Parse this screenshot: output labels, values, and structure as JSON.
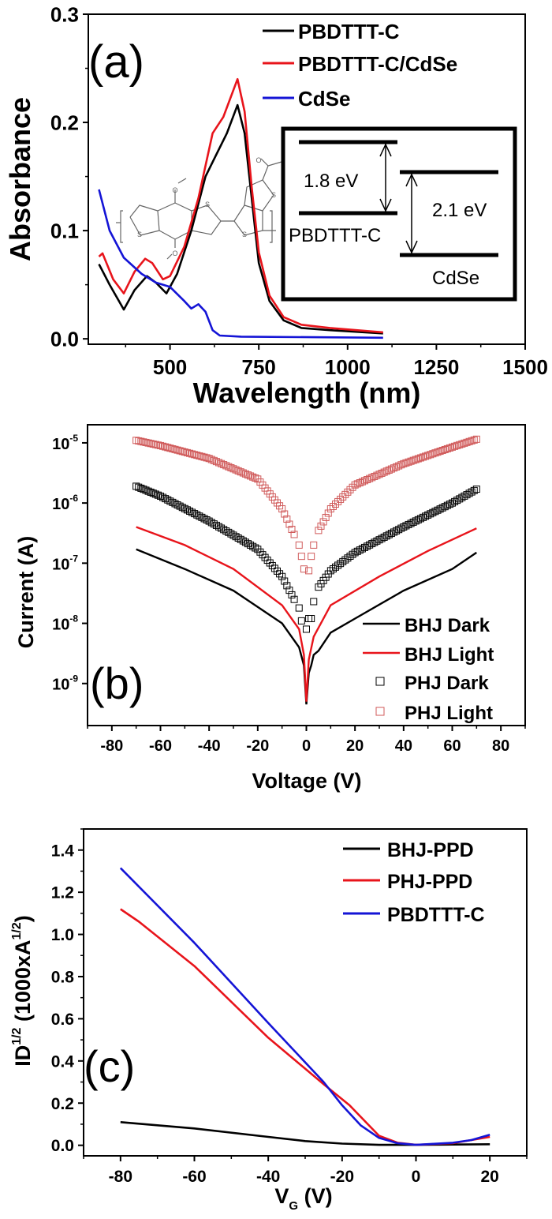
{
  "colors": {
    "black": "#000000",
    "red": "#e8141b",
    "blue": "#1414d6",
    "light_red": "#d05a5a",
    "molecule": "#666666"
  },
  "chart_data": [
    {
      "panel_label": "(a)",
      "type": "line",
      "xlabel": "Wavelength (nm)",
      "ylabel": "Absorbance",
      "xlim": [
        270,
        1500
      ],
      "ylim": [
        -0.005,
        0.3
      ],
      "xticks": [
        500,
        750,
        1000,
        1250,
        1500
      ],
      "xtick_labels": [
        "500",
        "750",
        "1000",
        "1250",
        "1500"
      ],
      "yticks": [
        0.0,
        0.1,
        0.2,
        0.3
      ],
      "ytick_labels": [
        "0.0",
        "0.1",
        "0.2",
        "0.3"
      ],
      "grid": false,
      "legend_position": "top-right",
      "series": [
        {
          "name": "PBDTTT-C",
          "color": "#000000",
          "x": [
            300,
            330,
            370,
            400,
            435,
            460,
            490,
            520,
            560,
            600,
            630,
            660,
            690,
            710,
            730,
            750,
            780,
            820,
            870,
            950,
            1100
          ],
          "y": [
            0.069,
            0.05,
            0.027,
            0.045,
            0.058,
            0.052,
            0.042,
            0.06,
            0.1,
            0.15,
            0.17,
            0.19,
            0.216,
            0.19,
            0.13,
            0.07,
            0.035,
            0.017,
            0.01,
            0.008,
            0.005
          ]
        },
        {
          "name": "PBDTTT-C/CdSe",
          "color": "#e8141b",
          "x": [
            300,
            310,
            340,
            370,
            400,
            430,
            450,
            480,
            500,
            540,
            580,
            620,
            650,
            690,
            710,
            730,
            750,
            780,
            820,
            870,
            950,
            1100
          ],
          "y": [
            0.076,
            0.079,
            0.055,
            0.042,
            0.062,
            0.074,
            0.07,
            0.055,
            0.058,
            0.085,
            0.13,
            0.19,
            0.205,
            0.24,
            0.21,
            0.14,
            0.08,
            0.04,
            0.02,
            0.013,
            0.01,
            0.006
          ]
        },
        {
          "name": "CdSe",
          "color": "#1414d6",
          "x": [
            300,
            330,
            370,
            420,
            460,
            500,
            540,
            560,
            580,
            600,
            620,
            640,
            700,
            1100
          ],
          "y": [
            0.138,
            0.1,
            0.075,
            0.06,
            0.052,
            0.048,
            0.035,
            0.028,
            0.032,
            0.025,
            0.008,
            0.003,
            0.002,
            0.001
          ]
        }
      ],
      "inset": {
        "labels": {
          "gap1": "1.8 eV",
          "gap2": "2.1 eV",
          "material1": "PBDTTT-C",
          "material2": "CdSe"
        }
      },
      "molecule_atoms": [
        "S",
        "S",
        "S",
        "S",
        "O",
        "O",
        "O"
      ]
    },
    {
      "panel_label": "(b)",
      "type": "scatter",
      "xlabel": "Voltage (V)",
      "ylabel": "Current (A)",
      "yscale": "log",
      "xlim": [
        -90,
        90
      ],
      "ylim": [
        2e-10,
        2e-05
      ],
      "xticks": [
        -80,
        -60,
        -40,
        -20,
        0,
        20,
        40,
        60,
        80
      ],
      "xtick_labels": [
        "-80",
        "-60",
        "-40",
        "-20",
        "0",
        "20",
        "40",
        "60",
        "80"
      ],
      "yticks": [
        1e-09,
        1e-08,
        1e-07,
        1e-06,
        1e-05
      ],
      "ytick_labels": [
        {
          "base": "10",
          "exp": "-9"
        },
        {
          "base": "10",
          "exp": "-8"
        },
        {
          "base": "10",
          "exp": "-7"
        },
        {
          "base": "10",
          "exp": "-6"
        },
        {
          "base": "10",
          "exp": "-5"
        }
      ],
      "grid": false,
      "legend_position": "bottom-right",
      "series": [
        {
          "name": "BHJ Dark",
          "style": "line",
          "color": "#000000",
          "x": [
            -70,
            -50,
            -30,
            -10,
            -3,
            -1,
            0,
            1,
            2,
            3,
            5,
            10,
            20,
            40,
            60,
            70
          ],
          "y": [
            1.7e-07,
            8e-08,
            3.5e-08,
            1e-08,
            4e-09,
            2e-09,
            4.5e-10,
            1.5e-09,
            2e-09,
            3e-09,
            3.5e-09,
            7e-09,
            1.2e-08,
            3.5e-08,
            8e-08,
            1.5e-07
          ]
        },
        {
          "name": "BHJ Light",
          "style": "line",
          "color": "#e8141b",
          "x": [
            -70,
            -50,
            -30,
            -10,
            -3,
            -1,
            0,
            1,
            3,
            10,
            30,
            50,
            70
          ],
          "y": [
            4e-07,
            2e-07,
            8e-08,
            2e-08,
            8e-09,
            3e-09,
            5e-10,
            2.5e-09,
            6e-09,
            2e-08,
            6e-08,
            1.6e-07,
            3.8e-07
          ]
        },
        {
          "name": "PHJ Dark",
          "style": "square",
          "color": "#000000",
          "x": [
            -70,
            -60,
            -40,
            -20,
            -10,
            -5,
            -3,
            -2,
            0,
            1,
            2,
            3,
            5,
            10,
            20,
            40,
            60,
            70
          ],
          "y": [
            1.9e-06,
            1.3e-06,
            5e-07,
            1.7e-07,
            6e-08,
            2.5e-08,
            1.8e-08,
            1.1e-08,
            8e-09,
            1.2e-08,
            1.2e-08,
            2.3e-08,
            4e-08,
            7.5e-08,
            1.5e-07,
            4e-07,
            1e-06,
            1.7e-06
          ]
        },
        {
          "name": "PHJ Light",
          "style": "square",
          "color": "#d05a5a",
          "x": [
            -70,
            -60,
            -40,
            -20,
            -10,
            -5,
            -3,
            -2,
            -1,
            1,
            2,
            3,
            5,
            10,
            20,
            40,
            60,
            70
          ],
          "y": [
            1.1e-05,
            9e-06,
            5.5e-06,
            2.5e-06,
            8e-07,
            3e-07,
            2e-07,
            1.3e-07,
            8e-08,
            7.5e-08,
            1.3e-07,
            2e-07,
            3.5e-07,
            8e-07,
            2e-06,
            4.5e-06,
            8.5e-06,
            1.15e-05
          ]
        }
      ]
    },
    {
      "panel_label": "(c)",
      "type": "line",
      "xlabel": {
        "main": "V",
        "sub": "G",
        "rest": " (V)"
      },
      "ylabel": {
        "a": "ID",
        "sup1": "1/2",
        "b": " (1000xA",
        "sup2": "1/2",
        "c": ")"
      },
      "xlim": [
        -90,
        30
      ],
      "ylim": [
        -0.05,
        1.5
      ],
      "xticks": [
        -80,
        -60,
        -40,
        -20,
        0,
        20
      ],
      "xtick_labels": [
        "-80",
        "-60",
        "-40",
        "-20",
        "0",
        "20"
      ],
      "yticks": [
        0.0,
        0.2,
        0.4,
        0.6,
        0.8,
        1.0,
        1.2,
        1.4
      ],
      "ytick_labels": [
        "0.0",
        "0.2",
        "0.4",
        "0.6",
        "0.8",
        "1.0",
        "1.2",
        "1.4"
      ],
      "grid": false,
      "legend_position": "top-right",
      "series": [
        {
          "name": "BHJ-PPD",
          "color": "#000000",
          "x": [
            -80,
            -60,
            -40,
            -30,
            -20,
            -10,
            0,
            20
          ],
          "y": [
            0.11,
            0.08,
            0.04,
            0.02,
            0.008,
            0.002,
            0.002,
            0.005
          ]
        },
        {
          "name": "PHJ-PPD",
          "color": "#e8141b",
          "x": [
            -80,
            -75,
            -60,
            -40,
            -25,
            -18,
            -10,
            -5,
            0,
            10,
            20
          ],
          "y": [
            1.12,
            1.06,
            0.85,
            0.51,
            0.29,
            0.19,
            0.045,
            0.012,
            0.002,
            0.01,
            0.04
          ]
        },
        {
          "name": "PBDTTT-C",
          "color": "#1414d6",
          "x": [
            -80,
            -60,
            -40,
            -25,
            -20,
            -15,
            -10,
            -5,
            0,
            10,
            15,
            20
          ],
          "y": [
            1.315,
            0.96,
            0.58,
            0.3,
            0.19,
            0.095,
            0.035,
            0.01,
            0.002,
            0.012,
            0.025,
            0.05
          ]
        }
      ]
    }
  ]
}
